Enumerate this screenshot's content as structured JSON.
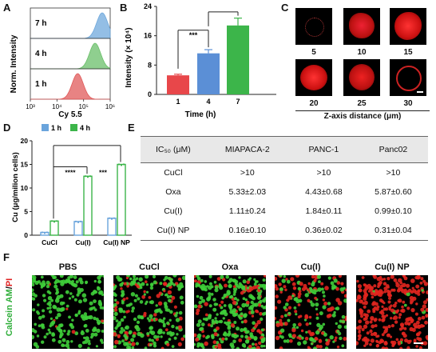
{
  "panel_labels": {
    "A": "A",
    "B": "B",
    "C": "C",
    "D": "D",
    "E": "E",
    "F": "F"
  },
  "chart_data": [
    {
      "panel": "A",
      "type": "area",
      "ylabel": "Norm. Intensity",
      "xlabel": "Cy 5.5",
      "x_ticks": [
        "10³",
        "10⁴",
        "10⁵",
        "10⁶"
      ],
      "series": [
        {
          "name": "7 h",
          "peak": 500000,
          "color": "#6fa8dc"
        },
        {
          "name": "4 h",
          "peak": 270000,
          "color": "#6abf69"
        },
        {
          "name": "1 h",
          "peak": 60000,
          "color": "#e05a5a"
        }
      ]
    },
    {
      "panel": "B",
      "type": "bar",
      "ylabel": "Intensity (× 10⁴)",
      "xlabel": "Time (h)",
      "categories": [
        "1",
        "4",
        "7"
      ],
      "values": [
        5.2,
        11.2,
        18.8
      ],
      "errors": [
        0.3,
        1.0,
        2.0
      ],
      "colors": [
        "#e8474a",
        "#5b8fd6",
        "#3cb54a"
      ],
      "ylim": [
        0,
        24
      ],
      "y_ticks": [
        "0",
        "8",
        "16",
        "24"
      ],
      "significance": "***"
    },
    {
      "panel": "D",
      "type": "bar",
      "ylabel": "Cu (μg/milion cells)",
      "categories": [
        "CuCl",
        "Cu(I)",
        "Cu(I) NP"
      ],
      "series": [
        {
          "name": "1 h",
          "values": [
            0.6,
            2.9,
            3.6
          ],
          "color": "#6aa4dc"
        },
        {
          "name": "4 h",
          "values": [
            3.0,
            12.5,
            15.0
          ],
          "color": "#3cb54a"
        }
      ],
      "ylim": [
        0,
        20
      ],
      "y_ticks": [
        "0",
        "5",
        "10",
        "15",
        "20"
      ],
      "significance": [
        "****",
        "***"
      ]
    }
  ],
  "panelC": {
    "labels": [
      "5",
      "10",
      "15",
      "20",
      "25",
      "30"
    ],
    "axis_label": "Z-axis distance (μm)"
  },
  "table": {
    "headers": [
      "IC₅₀ (μM)",
      "MIAPACA-2",
      "PANC-1",
      "Panc02"
    ],
    "rows": [
      [
        "CuCl",
        ">10",
        ">10",
        ">10"
      ],
      [
        "Oxa",
        "5.33±2.03",
        "4.43±0.68",
        "5.87±0.60"
      ],
      [
        "Cu(I)",
        "1.11±0.24",
        "1.84±0.11",
        "0.99±0.10"
      ],
      [
        "Cu(I) NP",
        "0.16±0.10",
        "0.36±0.02",
        "0.31±0.04"
      ]
    ]
  },
  "panelF": {
    "side_label_green": "Calcein AM",
    "side_label_sep": "/",
    "side_label_red": "PI",
    "titles": [
      "PBS",
      "CuCl",
      "Oxa",
      "Cu(I)",
      "Cu(I) NP"
    ]
  }
}
